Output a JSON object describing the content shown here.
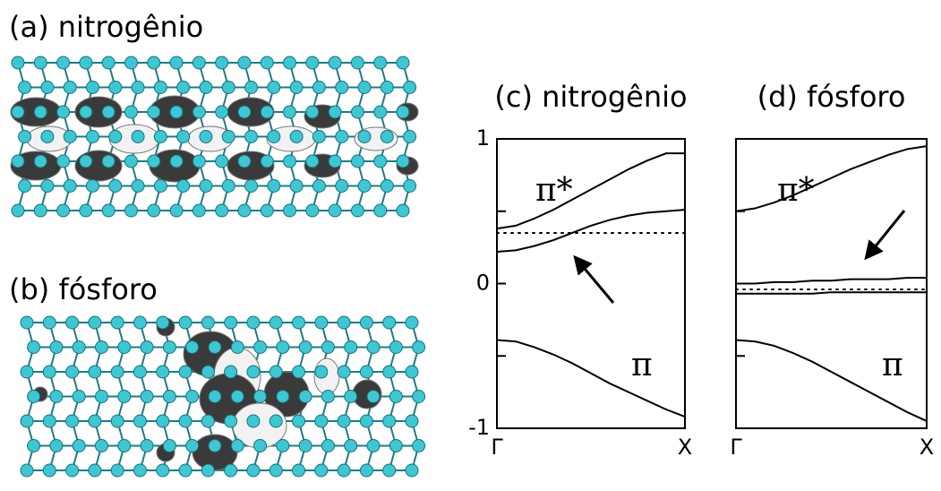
{
  "panels": [
    {
      "label": "(a) nitrogênio"
    },
    {
      "label": "(b) fósforo"
    }
  ],
  "chart_data": [
    {
      "type": "line",
      "title": "(c) nitrogênio",
      "x": [
        0,
        0.1,
        0.2,
        0.3,
        0.4,
        0.5,
        0.6,
        0.7,
        0.8,
        0.9,
        1
      ],
      "xlim": [
        0,
        1
      ],
      "xticks": [
        {
          "value": 0,
          "label": "Γ"
        },
        {
          "value": 1,
          "label": "X"
        }
      ],
      "ylim": [
        -1,
        1
      ],
      "yticks": [
        -1,
        0,
        1
      ],
      "yminor": [
        -0.5,
        0.5
      ],
      "series": [
        {
          "color": "#000000",
          "style": "solid",
          "values": [
            0.38,
            0.4,
            0.45,
            0.51,
            0.58,
            0.65,
            0.72,
            0.79,
            0.85,
            0.9,
            0.9
          ]
        },
        {
          "color": "#000000",
          "style": "solid",
          "values": [
            0.22,
            0.23,
            0.26,
            0.3,
            0.35,
            0.4,
            0.44,
            0.47,
            0.49,
            0.5,
            0.51
          ]
        },
        {
          "color": "#000000",
          "style": "dotted",
          "values": [
            0.35,
            0.35,
            0.35,
            0.35,
            0.35,
            0.35,
            0.35,
            0.35,
            0.35,
            0.35,
            0.35
          ]
        },
        {
          "color": "#000000",
          "style": "solid",
          "values": [
            -0.39,
            -0.4,
            -0.44,
            -0.49,
            -0.55,
            -0.62,
            -0.69,
            -0.75,
            -0.81,
            -0.87,
            -0.92
          ]
        }
      ],
      "annotations": [
        {
          "text": "π*"
        },
        {
          "text": "π"
        }
      ]
    },
    {
      "type": "line",
      "title": "(d) fósforo",
      "x": [
        0,
        0.1,
        0.2,
        0.3,
        0.4,
        0.5,
        0.6,
        0.7,
        0.8,
        0.9,
        1
      ],
      "xlim": [
        0,
        1
      ],
      "xticks": [
        {
          "value": 0,
          "label": "Γ"
        },
        {
          "value": 1,
          "label": "X"
        }
      ],
      "ylim": [
        -1,
        1
      ],
      "yminor": [
        -0.5,
        0,
        0.5
      ],
      "series": [
        {
          "color": "#000000",
          "style": "solid",
          "values": [
            0.5,
            0.52,
            0.56,
            0.61,
            0.67,
            0.73,
            0.79,
            0.84,
            0.89,
            0.93,
            0.95
          ]
        },
        {
          "color": "#000000",
          "style": "solid",
          "values": [
            0.0,
            0.0,
            0.01,
            0.01,
            0.02,
            0.02,
            0.03,
            0.03,
            0.03,
            0.04,
            0.04
          ]
        },
        {
          "color": "#000000",
          "style": "dotted",
          "values": [
            -0.04,
            -0.04,
            -0.04,
            -0.04,
            -0.04,
            -0.04,
            -0.04,
            -0.04,
            -0.04,
            -0.04,
            -0.04
          ]
        },
        {
          "color": "#000000",
          "style": "solid",
          "values": [
            -0.07,
            -0.07,
            -0.07,
            -0.07,
            -0.07,
            -0.06,
            -0.06,
            -0.06,
            -0.06,
            -0.06,
            -0.06
          ]
        },
        {
          "color": "#000000",
          "style": "solid",
          "values": [
            -0.39,
            -0.4,
            -0.43,
            -0.48,
            -0.54,
            -0.61,
            -0.68,
            -0.75,
            -0.82,
            -0.89,
            -0.95
          ]
        }
      ],
      "annotations": [
        {
          "text": "π*"
        },
        {
          "text": "π"
        }
      ]
    }
  ]
}
